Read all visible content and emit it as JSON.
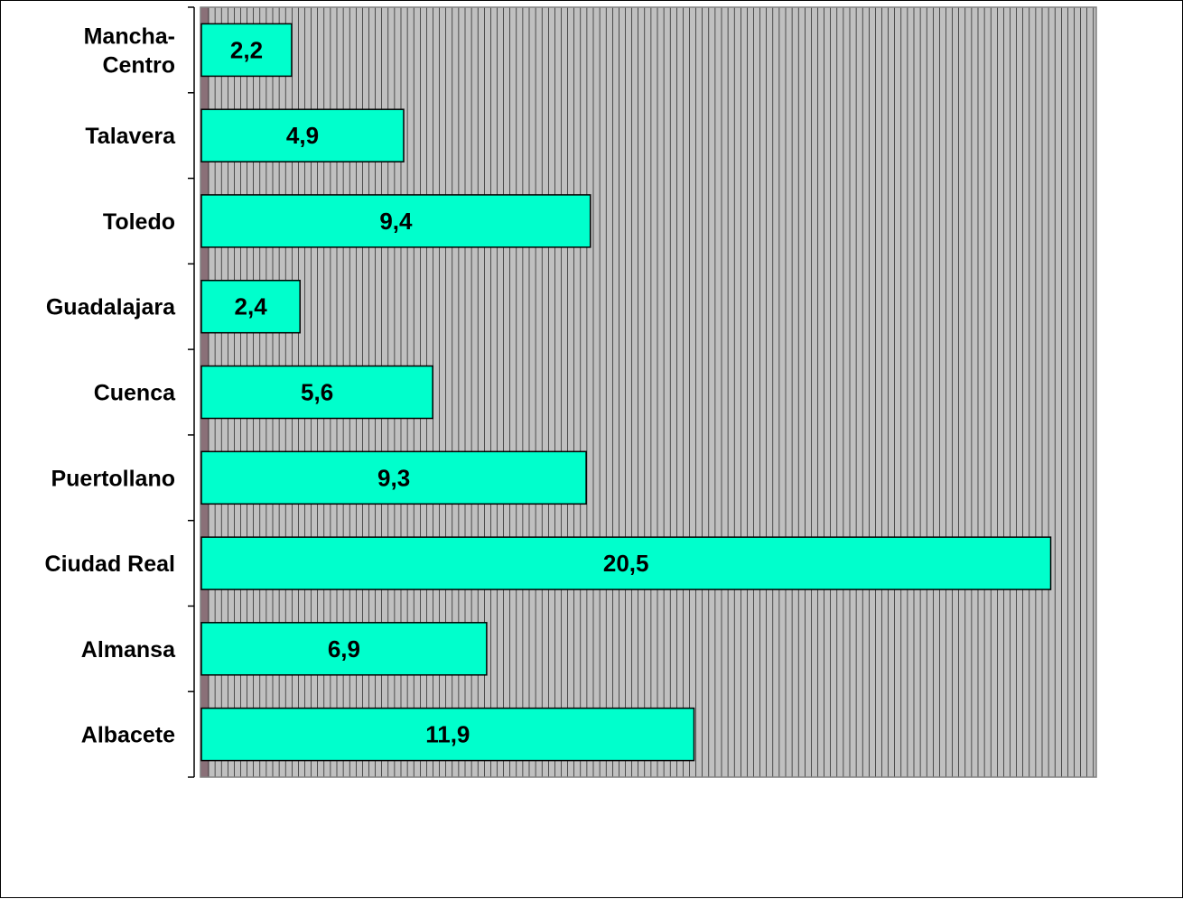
{
  "chart_data": {
    "type": "bar",
    "orientation": "horizontal",
    "categories": [
      "Mancha-Centro",
      "Talavera",
      "Toledo",
      "Guadalajara",
      "Cuenca",
      "Puertollano",
      "Ciudad Real",
      "Almansa",
      "Albacete"
    ],
    "category_lines": [
      [
        "Mancha-",
        "Centro"
      ],
      [
        "Talavera"
      ],
      [
        "Toledo"
      ],
      [
        "Guadalajara"
      ],
      [
        "Cuenca"
      ],
      [
        "Puertollano"
      ],
      [
        "Ciudad Real"
      ],
      [
        "Almansa"
      ],
      [
        "Albacete"
      ]
    ],
    "values": [
      2.2,
      4.9,
      9.4,
      2.4,
      5.6,
      9.3,
      20.5,
      6.9,
      11.9
    ],
    "value_labels": [
      "2,2",
      "4,9",
      "9,4",
      "2,4",
      "5,6",
      "9,3",
      "20,5",
      "6,9",
      "11,9"
    ],
    "xlim": [
      0,
      21.6
    ],
    "grid": true,
    "legend": "none",
    "colors": {
      "bar_fill": "#00FFCC",
      "plot_background": "#C0C0C0",
      "grid_lines": "#000000"
    }
  }
}
